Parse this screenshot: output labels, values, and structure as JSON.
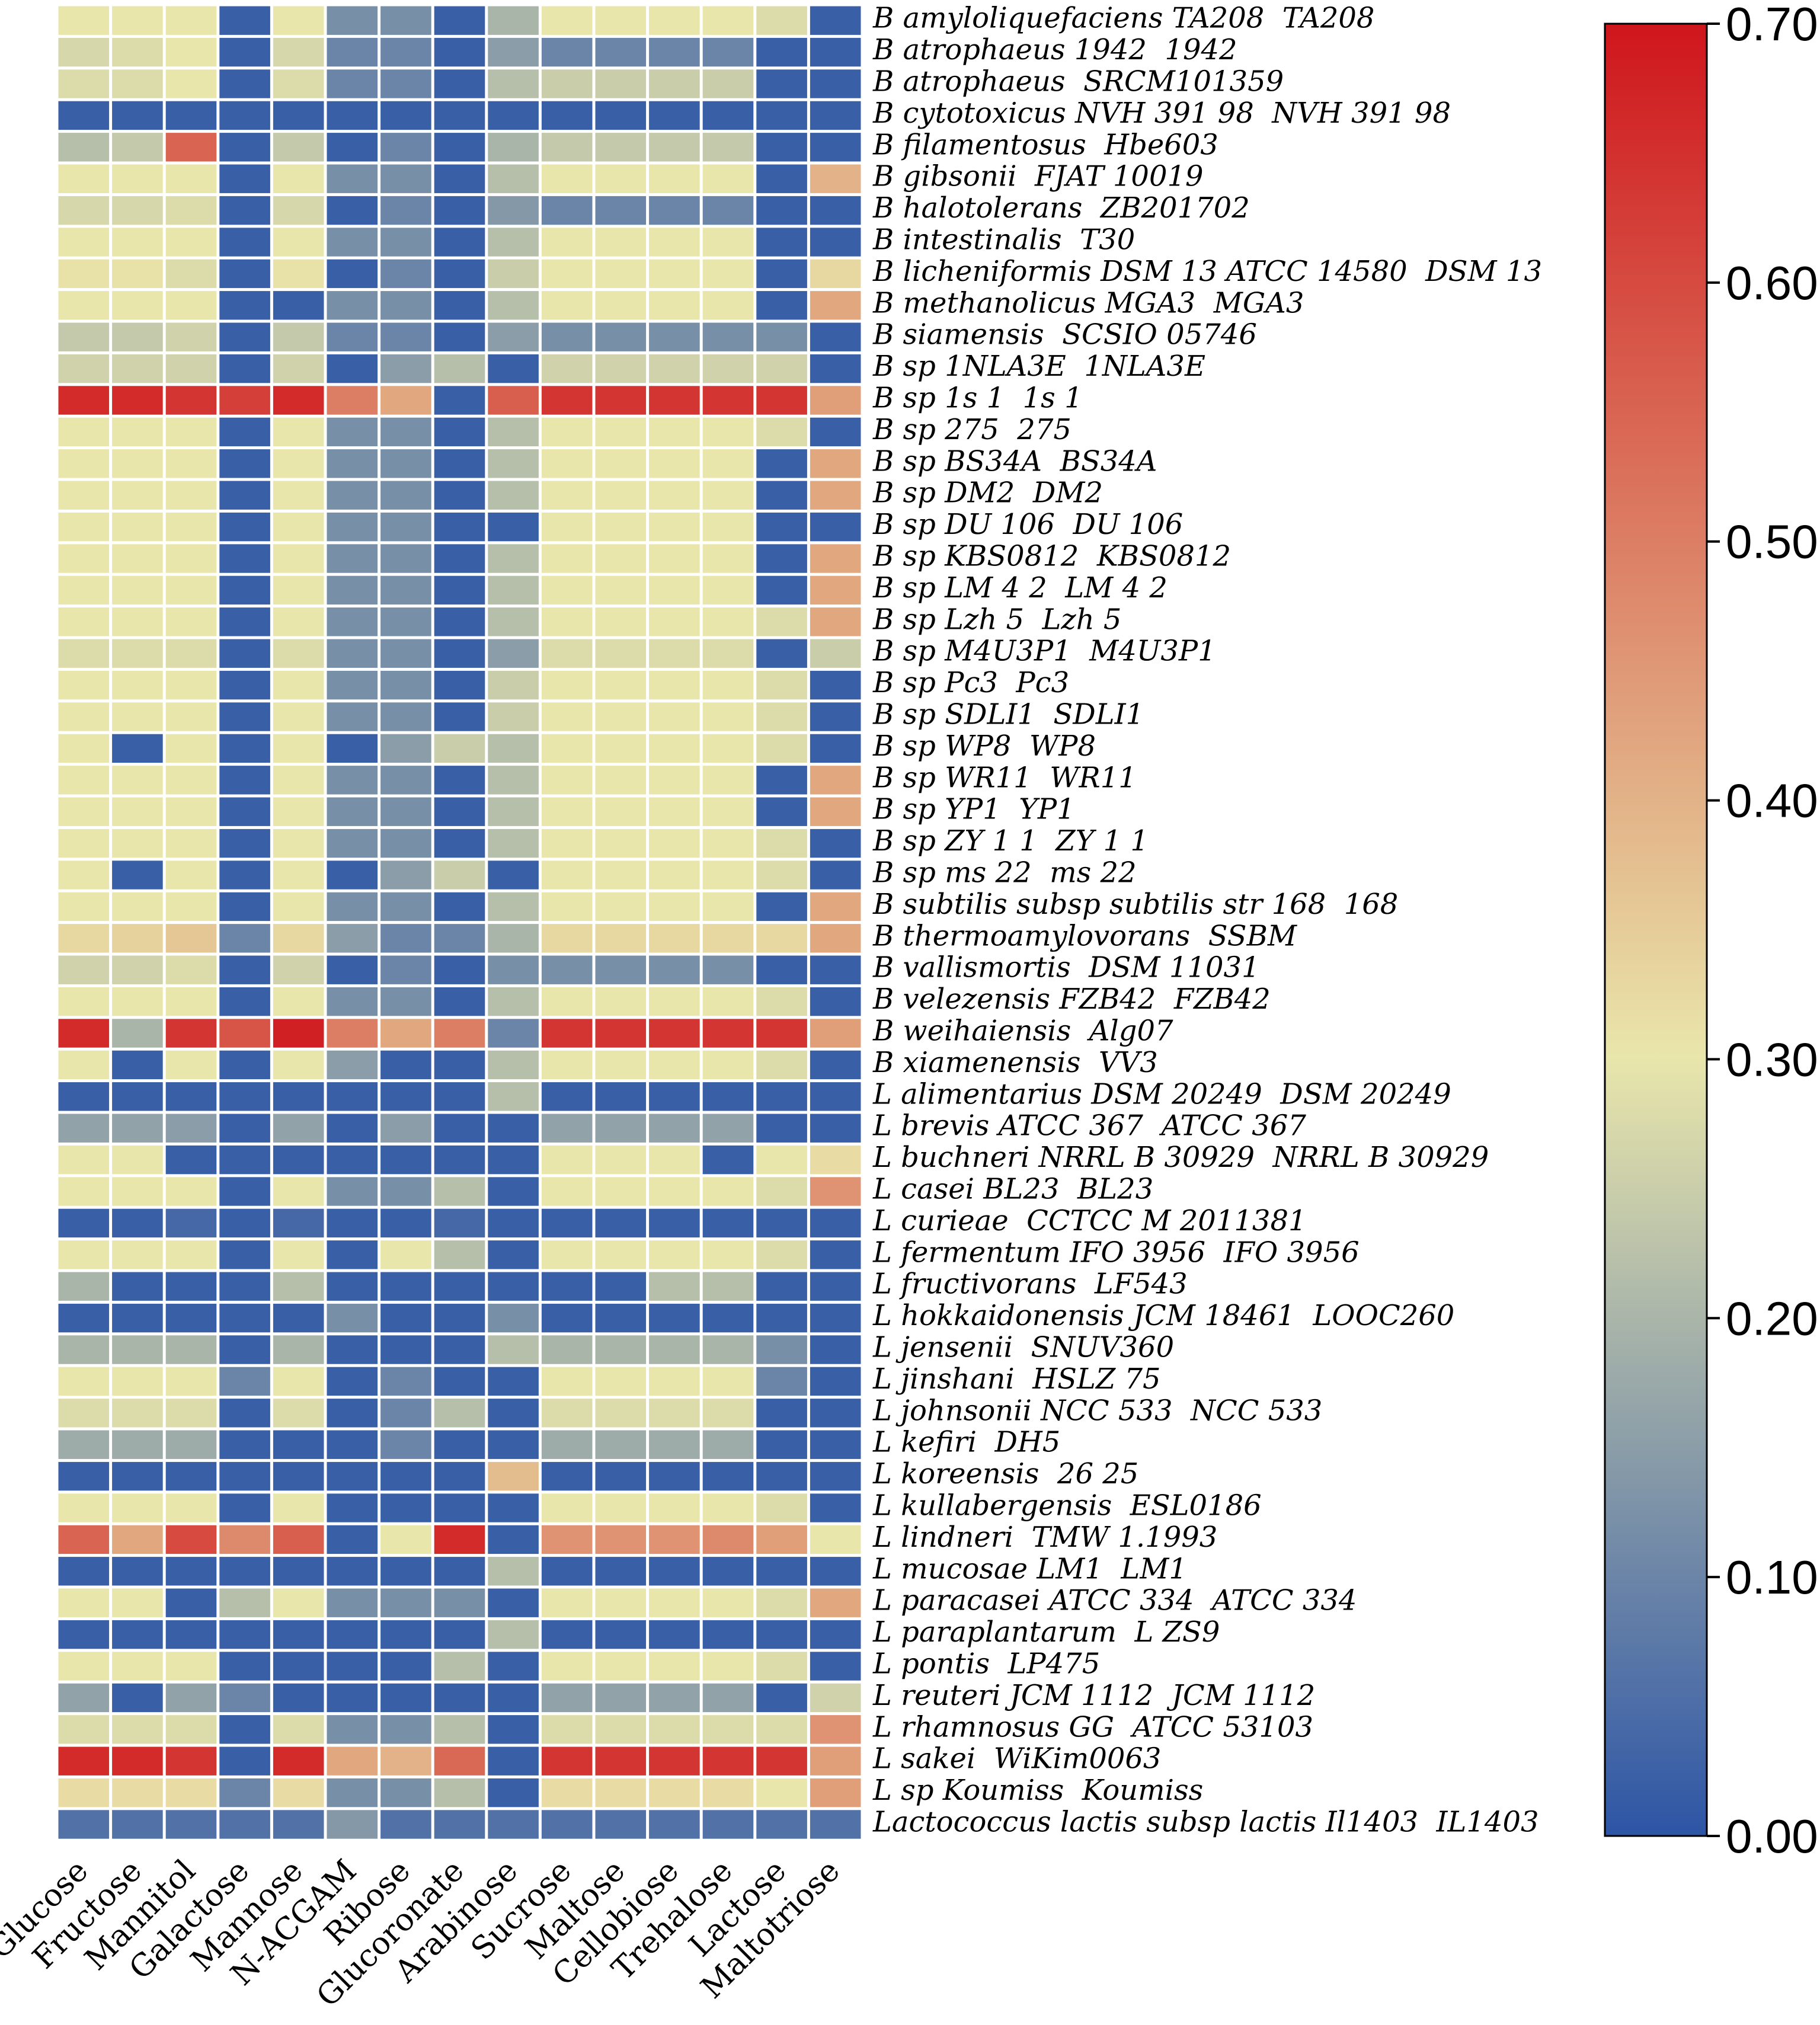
{
  "chart_data": {
    "type": "heatmap",
    "columns": [
      "Glucose",
      "Fructose",
      "Mannitol",
      "Galactose",
      "Mannose",
      "N-ACGAM",
      "Ribose",
      "Glucoronate",
      "Arabinose",
      "Sucrose",
      "Maltose",
      "Cellobiose",
      "Trehalose",
      "Lactose",
      "Maltotriose"
    ],
    "rows": [
      "B amyloliquefaciens TA208  TA208",
      "B atrophaeus 1942  1942",
      "B atrophaeus  SRCM101359",
      "B cytotoxicus NVH 391 98  NVH 391 98",
      "B filamentosus  Hbe603",
      "B gibsonii  FJAT 10019",
      "B halotolerans  ZB201702",
      "B intestinalis  T30",
      "B licheniformis DSM 13 ATCC 14580  DSM 13",
      "B methanolicus MGA3  MGA3",
      "B siamensis  SCSIO 05746",
      "B sp 1NLA3E  1NLA3E",
      "B sp 1s 1  1s 1",
      "B sp 275  275",
      "B sp BS34A  BS34A",
      "B sp DM2  DM2",
      "B sp DU 106  DU 106",
      "B sp KBS0812  KBS0812",
      "B sp LM 4 2  LM 4 2",
      "B sp Lzh 5  Lzh 5",
      "B sp M4U3P1  M4U3P1",
      "B sp Pc3  Pc3",
      "B sp SDLI1  SDLI1",
      "B sp WP8  WP8",
      "B sp WR11  WR11",
      "B sp YP1  YP1",
      "B sp ZY 1 1  ZY 1 1",
      "B sp ms 22  ms 22",
      "B subtilis subsp subtilis str 168  168",
      "B thermoamylovorans  SSBM",
      "B vallismortis  DSM 11031",
      "B velezensis FZB42  FZB42",
      "B weihaiensis  Alg07",
      "B xiamenensis  VV3",
      "L alimentarius DSM 20249  DSM 20249",
      "L brevis ATCC 367  ATCC 367",
      "L buchneri NRRL B 30929  NRRL B 30929",
      "L casei BL23  BL23",
      "L curieae  CCTCC M 2011381",
      "L fermentum IFO 3956  IFO 3956",
      "L fructivorans  LF543",
      "L hokkaidonensis JCM 18461  LOOC260",
      "L jensenii  SNUV360",
      "L jinshani  HSLZ 75",
      "L johnsonii NCC 533  NCC 533",
      "L kefiri  DH5",
      "L koreensis  26 25",
      "L kullabergensis  ESL0186",
      "L lindneri  TMW 1.1993",
      "L mucosae LM1  LM1",
      "L paracasei ATCC 334  ATCC 334",
      "L paraplantarum  L ZS9",
      "L pontis  LP475",
      "L reuteri JCM 1112  JCM 1112",
      "L rhamnosus GG  ATCC 53103",
      "L sakei  WiKim0063",
      "L sp Koumiss  Koumiss",
      "Lactococcus lactis subsp lactis Il1403  IL1403"
    ],
    "values": [
      [
        0.3,
        0.3,
        0.3,
        0.02,
        0.3,
        0.12,
        0.12,
        0.02,
        0.2,
        0.3,
        0.3,
        0.3,
        0.3,
        0.28,
        0.02
      ],
      [
        0.27,
        0.28,
        0.3,
        0.02,
        0.27,
        0.1,
        0.1,
        0.02,
        0.15,
        0.1,
        0.1,
        0.1,
        0.1,
        0.02,
        0.02
      ],
      [
        0.28,
        0.28,
        0.3,
        0.02,
        0.28,
        0.1,
        0.1,
        0.02,
        0.22,
        0.25,
        0.25,
        0.25,
        0.25,
        0.02,
        0.02
      ],
      [
        0.02,
        0.02,
        0.02,
        0.02,
        0.02,
        0.02,
        0.02,
        0.02,
        0.02,
        0.02,
        0.02,
        0.02,
        0.02,
        0.02,
        0.02
      ],
      [
        0.22,
        0.24,
        0.55,
        0.02,
        0.24,
        0.02,
        0.1,
        0.02,
        0.2,
        0.24,
        0.24,
        0.24,
        0.24,
        0.02,
        0.02
      ],
      [
        0.3,
        0.3,
        0.3,
        0.02,
        0.3,
        0.12,
        0.12,
        0.02,
        0.22,
        0.3,
        0.3,
        0.3,
        0.3,
        0.02,
        0.4
      ],
      [
        0.27,
        0.27,
        0.28,
        0.02,
        0.27,
        0.02,
        0.1,
        0.02,
        0.14,
        0.1,
        0.1,
        0.1,
        0.1,
        0.02,
        0.02
      ],
      [
        0.3,
        0.3,
        0.3,
        0.02,
        0.3,
        0.12,
        0.12,
        0.02,
        0.22,
        0.3,
        0.3,
        0.3,
        0.3,
        0.02,
        0.02
      ],
      [
        0.31,
        0.31,
        0.28,
        0.02,
        0.31,
        0.02,
        0.1,
        0.02,
        0.25,
        0.3,
        0.3,
        0.3,
        0.3,
        0.02,
        0.33
      ],
      [
        0.3,
        0.3,
        0.3,
        0.02,
        0.02,
        0.12,
        0.12,
        0.02,
        0.22,
        0.3,
        0.3,
        0.3,
        0.3,
        0.02,
        0.42
      ],
      [
        0.24,
        0.24,
        0.26,
        0.02,
        0.24,
        0.1,
        0.1,
        0.02,
        0.15,
        0.12,
        0.12,
        0.12,
        0.12,
        0.12,
        0.02
      ],
      [
        0.26,
        0.26,
        0.26,
        0.02,
        0.26,
        0.02,
        0.15,
        0.22,
        0.02,
        0.26,
        0.26,
        0.26,
        0.26,
        0.26,
        0.02
      ],
      [
        0.66,
        0.66,
        0.64,
        0.62,
        0.66,
        0.5,
        0.42,
        0.02,
        0.56,
        0.64,
        0.64,
        0.64,
        0.64,
        0.64,
        0.44
      ],
      [
        0.3,
        0.3,
        0.3,
        0.02,
        0.3,
        0.12,
        0.12,
        0.02,
        0.22,
        0.3,
        0.3,
        0.3,
        0.3,
        0.28,
        0.02
      ],
      [
        0.3,
        0.3,
        0.3,
        0.02,
        0.3,
        0.12,
        0.12,
        0.02,
        0.22,
        0.3,
        0.3,
        0.3,
        0.3,
        0.02,
        0.42
      ],
      [
        0.3,
        0.3,
        0.3,
        0.02,
        0.3,
        0.12,
        0.12,
        0.02,
        0.22,
        0.3,
        0.3,
        0.3,
        0.3,
        0.02,
        0.42
      ],
      [
        0.3,
        0.3,
        0.3,
        0.02,
        0.3,
        0.12,
        0.12,
        0.02,
        0.02,
        0.3,
        0.3,
        0.3,
        0.3,
        0.02,
        0.02
      ],
      [
        0.3,
        0.3,
        0.3,
        0.02,
        0.3,
        0.12,
        0.12,
        0.02,
        0.22,
        0.3,
        0.3,
        0.3,
        0.3,
        0.02,
        0.42
      ],
      [
        0.3,
        0.3,
        0.3,
        0.02,
        0.3,
        0.12,
        0.12,
        0.02,
        0.22,
        0.3,
        0.3,
        0.3,
        0.3,
        0.02,
        0.42
      ],
      [
        0.3,
        0.3,
        0.3,
        0.02,
        0.3,
        0.12,
        0.12,
        0.02,
        0.22,
        0.3,
        0.3,
        0.3,
        0.3,
        0.28,
        0.42
      ],
      [
        0.28,
        0.28,
        0.28,
        0.02,
        0.28,
        0.12,
        0.12,
        0.02,
        0.15,
        0.28,
        0.28,
        0.28,
        0.28,
        0.02,
        0.25
      ],
      [
        0.3,
        0.3,
        0.3,
        0.02,
        0.3,
        0.12,
        0.12,
        0.02,
        0.25,
        0.3,
        0.3,
        0.3,
        0.3,
        0.28,
        0.02
      ],
      [
        0.3,
        0.3,
        0.3,
        0.02,
        0.3,
        0.12,
        0.12,
        0.02,
        0.25,
        0.3,
        0.3,
        0.3,
        0.3,
        0.28,
        0.02
      ],
      [
        0.3,
        0.02,
        0.3,
        0.02,
        0.3,
        0.02,
        0.15,
        0.25,
        0.22,
        0.3,
        0.3,
        0.3,
        0.3,
        0.28,
        0.02
      ],
      [
        0.3,
        0.3,
        0.3,
        0.02,
        0.3,
        0.12,
        0.12,
        0.02,
        0.22,
        0.3,
        0.3,
        0.3,
        0.3,
        0.02,
        0.42
      ],
      [
        0.3,
        0.3,
        0.3,
        0.02,
        0.3,
        0.12,
        0.12,
        0.02,
        0.22,
        0.3,
        0.3,
        0.3,
        0.3,
        0.02,
        0.42
      ],
      [
        0.3,
        0.3,
        0.3,
        0.02,
        0.3,
        0.12,
        0.12,
        0.02,
        0.22,
        0.3,
        0.3,
        0.3,
        0.3,
        0.28,
        0.02
      ],
      [
        0.3,
        0.02,
        0.3,
        0.02,
        0.3,
        0.02,
        0.15,
        0.25,
        0.02,
        0.3,
        0.3,
        0.3,
        0.3,
        0.28,
        0.02
      ],
      [
        0.3,
        0.3,
        0.3,
        0.02,
        0.3,
        0.12,
        0.12,
        0.02,
        0.22,
        0.3,
        0.3,
        0.3,
        0.3,
        0.02,
        0.42
      ],
      [
        0.33,
        0.34,
        0.36,
        0.1,
        0.33,
        0.15,
        0.1,
        0.1,
        0.2,
        0.33,
        0.33,
        0.33,
        0.33,
        0.33,
        0.42
      ],
      [
        0.26,
        0.26,
        0.28,
        0.02,
        0.26,
        0.02,
        0.1,
        0.02,
        0.12,
        0.12,
        0.12,
        0.12,
        0.12,
        0.02,
        0.02
      ],
      [
        0.3,
        0.3,
        0.3,
        0.02,
        0.3,
        0.12,
        0.12,
        0.02,
        0.22,
        0.3,
        0.3,
        0.3,
        0.3,
        0.28,
        0.02
      ],
      [
        0.66,
        0.2,
        0.64,
        0.58,
        0.68,
        0.5,
        0.42,
        0.5,
        0.1,
        0.64,
        0.64,
        0.64,
        0.64,
        0.64,
        0.44
      ],
      [
        0.3,
        0.02,
        0.3,
        0.02,
        0.3,
        0.15,
        0.02,
        0.02,
        0.22,
        0.3,
        0.3,
        0.3,
        0.3,
        0.28,
        0.02
      ],
      [
        0.02,
        0.02,
        0.02,
        0.02,
        0.02,
        0.02,
        0.02,
        0.02,
        0.22,
        0.02,
        0.02,
        0.02,
        0.02,
        0.02,
        0.02
      ],
      [
        0.16,
        0.16,
        0.15,
        0.02,
        0.16,
        0.02,
        0.15,
        0.02,
        0.02,
        0.16,
        0.16,
        0.16,
        0.16,
        0.02,
        0.02
      ],
      [
        0.3,
        0.3,
        0.02,
        0.02,
        0.02,
        0.02,
        0.02,
        0.02,
        0.02,
        0.3,
        0.3,
        0.3,
        0.02,
        0.3,
        0.32
      ],
      [
        0.3,
        0.3,
        0.3,
        0.02,
        0.3,
        0.12,
        0.12,
        0.22,
        0.02,
        0.3,
        0.3,
        0.3,
        0.3,
        0.28,
        0.46
      ],
      [
        0.02,
        0.02,
        0.04,
        0.02,
        0.04,
        0.02,
        0.02,
        0.04,
        0.02,
        0.02,
        0.02,
        0.02,
        0.02,
        0.02,
        0.02
      ],
      [
        0.3,
        0.3,
        0.3,
        0.02,
        0.3,
        0.02,
        0.3,
        0.22,
        0.02,
        0.3,
        0.3,
        0.3,
        0.3,
        0.28,
        0.02
      ],
      [
        0.2,
        0.02,
        0.02,
        0.02,
        0.22,
        0.02,
        0.02,
        0.02,
        0.02,
        0.02,
        0.02,
        0.22,
        0.22,
        0.02,
        0.02
      ],
      [
        0.02,
        0.02,
        0.02,
        0.02,
        0.02,
        0.12,
        0.02,
        0.02,
        0.12,
        0.02,
        0.02,
        0.02,
        0.02,
        0.02,
        0.02
      ],
      [
        0.2,
        0.2,
        0.2,
        0.02,
        0.2,
        0.02,
        0.02,
        0.02,
        0.22,
        0.2,
        0.2,
        0.2,
        0.2,
        0.12,
        0.02
      ],
      [
        0.3,
        0.3,
        0.3,
        0.1,
        0.3,
        0.02,
        0.1,
        0.02,
        0.02,
        0.3,
        0.3,
        0.3,
        0.3,
        0.1,
        0.02
      ],
      [
        0.28,
        0.28,
        0.28,
        0.02,
        0.28,
        0.02,
        0.1,
        0.22,
        0.02,
        0.28,
        0.28,
        0.28,
        0.28,
        0.02,
        0.02
      ],
      [
        0.18,
        0.18,
        0.18,
        0.02,
        0.02,
        0.02,
        0.1,
        0.02,
        0.02,
        0.18,
        0.18,
        0.18,
        0.18,
        0.02,
        0.02
      ],
      [
        0.02,
        0.02,
        0.02,
        0.02,
        0.02,
        0.02,
        0.02,
        0.02,
        0.38,
        0.02,
        0.02,
        0.02,
        0.02,
        0.02,
        0.02
      ],
      [
        0.3,
        0.3,
        0.3,
        0.02,
        0.3,
        0.02,
        0.02,
        0.02,
        0.02,
        0.3,
        0.3,
        0.3,
        0.3,
        0.28,
        0.02
      ],
      [
        0.55,
        0.42,
        0.6,
        0.48,
        0.56,
        0.02,
        0.3,
        0.66,
        0.02,
        0.46,
        0.46,
        0.46,
        0.48,
        0.44,
        0.3
      ],
      [
        0.02,
        0.02,
        0.02,
        0.02,
        0.02,
        0.02,
        0.02,
        0.02,
        0.22,
        0.02,
        0.02,
        0.02,
        0.02,
        0.02,
        0.02
      ],
      [
        0.3,
        0.3,
        0.02,
        0.22,
        0.3,
        0.12,
        0.12,
        0.12,
        0.02,
        0.3,
        0.3,
        0.3,
        0.3,
        0.28,
        0.42
      ],
      [
        0.02,
        0.02,
        0.02,
        0.02,
        0.02,
        0.02,
        0.02,
        0.02,
        0.22,
        0.02,
        0.02,
        0.02,
        0.02,
        0.02,
        0.02
      ],
      [
        0.3,
        0.3,
        0.3,
        0.02,
        0.02,
        0.02,
        0.02,
        0.22,
        0.02,
        0.3,
        0.3,
        0.3,
        0.3,
        0.28,
        0.02
      ],
      [
        0.16,
        0.02,
        0.16,
        0.1,
        0.02,
        0.02,
        0.02,
        0.02,
        0.02,
        0.16,
        0.16,
        0.16,
        0.16,
        0.02,
        0.26
      ],
      [
        0.28,
        0.28,
        0.28,
        0.02,
        0.28,
        0.12,
        0.12,
        0.22,
        0.02,
        0.28,
        0.28,
        0.28,
        0.28,
        0.28,
        0.46
      ],
      [
        0.66,
        0.66,
        0.64,
        0.02,
        0.66,
        0.42,
        0.4,
        0.54,
        0.02,
        0.64,
        0.64,
        0.64,
        0.64,
        0.64,
        0.44
      ],
      [
        0.32,
        0.32,
        0.32,
        0.1,
        0.32,
        0.12,
        0.12,
        0.22,
        0.02,
        0.32,
        0.32,
        0.32,
        0.32,
        0.3,
        0.44
      ],
      [
        0.06,
        0.06,
        0.06,
        0.06,
        0.06,
        0.14,
        0.06,
        0.06,
        0.06,
        0.06,
        0.06,
        0.06,
        0.06,
        0.06,
        0.06
      ]
    ],
    "colorbar": {
      "min": 0.0,
      "max": 0.7,
      "ticks": [
        "0.00",
        "0.10",
        "0.20",
        "0.30",
        "0.40",
        "0.50",
        "0.60",
        "0.70"
      ],
      "tick_values": [
        0.0,
        0.1,
        0.2,
        0.3,
        0.4,
        0.5,
        0.6,
        0.7
      ],
      "colormap": [
        "#2d55a6",
        "#e9e6ab",
        "#cf161c"
      ]
    },
    "cell_gap_color": "#ffffff"
  }
}
